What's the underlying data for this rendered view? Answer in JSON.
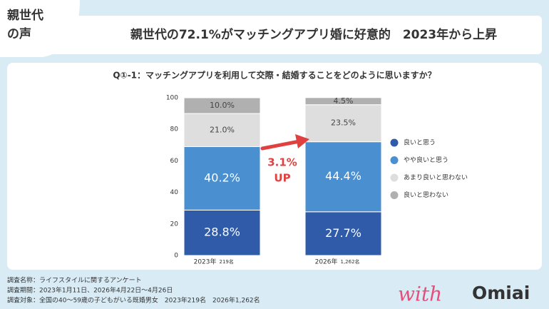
{
  "header": {
    "badge": [
      "親世代",
      "の声"
    ],
    "title": "親世代の72.1%がマッチングアプリ婚に好意的　2023年から上昇"
  },
  "chart_data": {
    "type": "stacked-bar",
    "title": "Q①-1：マッチングアプリを利用して交際・結婚することをどのように思いますか？",
    "categories": [
      "2023年",
      "2026年"
    ],
    "sample_sizes": [
      "219名",
      "1,262名"
    ],
    "series": [
      {
        "name": "良いと思う",
        "color": "#2f5ba9",
        "label_color": "#ffffff",
        "values": [
          28.8,
          27.7
        ],
        "value_labels": [
          "28.8%",
          "27.7%"
        ]
      },
      {
        "name": "やや良いと思う",
        "color": "#4a8fd0",
        "label_color": "#ffffff",
        "values": [
          40.2,
          44.4
        ],
        "value_labels": [
          "40.2%",
          "44.4%"
        ]
      },
      {
        "name": "あまり良いと思わない",
        "color": "#dedede",
        "label_color": "#444444",
        "values": [
          21.0,
          23.5
        ],
        "value_labels": [
          "21.0%",
          "23.5%"
        ]
      },
      {
        "name": "良いと思わない",
        "color": "#b0b0b0",
        "label_color": "#444444",
        "values": [
          10.0,
          4.5
        ],
        "value_labels": [
          "10.0%",
          "4.5%"
        ]
      }
    ],
    "ylim": [
      0,
      100
    ],
    "yticks": [
      0,
      20,
      40,
      60,
      80,
      100
    ],
    "grid": false,
    "annotations": [
      "3.1%",
      "UP"
    ],
    "annotation_color": "#e0403f"
  },
  "footer": {
    "notes": [
      "調査名称：ライフスタイルに関するアンケート",
      "調査期間：2023年1月11日、2026年4月22日～4月26日",
      "調査対象：全国の40～59歳の子どもがいる既婚男女　2023年219名　2026年1,262名"
    ],
    "logo": {
      "script": "with",
      "name": "Omiai"
    }
  }
}
